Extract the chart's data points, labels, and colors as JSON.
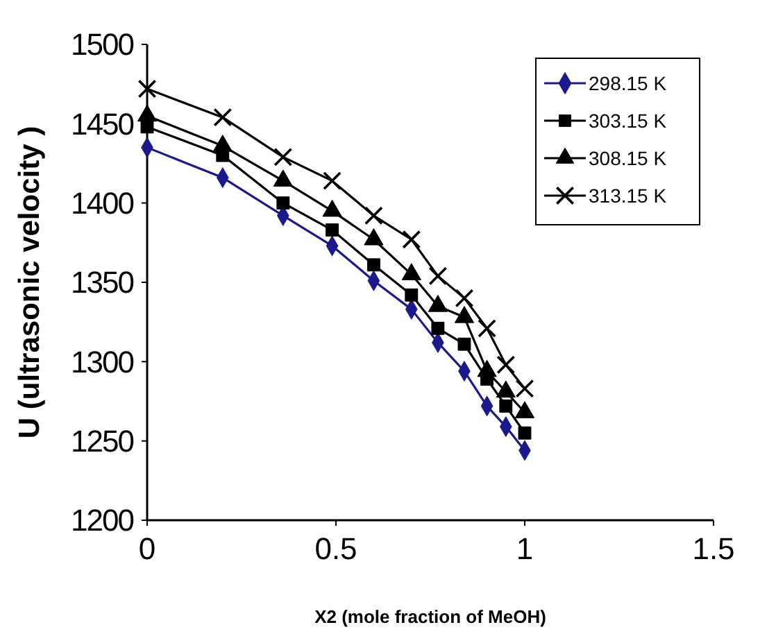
{
  "chart_data": {
    "type": "line",
    "xlabel": "X2 (mole fraction of MeOH)",
    "ylabel": "U (ultrasonic velocity )",
    "x": [
      0,
      0.2,
      0.36,
      0.49,
      0.6,
      0.7,
      0.77,
      0.84,
      0.9,
      0.95,
      1
    ],
    "xlim": [
      0,
      1.5
    ],
    "xticks": [
      0,
      0.5,
      1,
      1.5
    ],
    "ylim": [
      1200,
      1500
    ],
    "yticks": [
      1200,
      1250,
      1300,
      1350,
      1400,
      1450,
      1500
    ],
    "grid": false,
    "legend": "top right",
    "series": [
      {
        "name": "298.15 K",
        "color": "#1a1a8c",
        "marker": "diamond",
        "values": [
          1435,
          1416,
          1392,
          1373,
          1351,
          1333,
          1312,
          1294,
          1272,
          1259,
          1244
        ]
      },
      {
        "name": "303.15 K",
        "color": "#000000",
        "marker": "square",
        "values": [
          1448,
          1430,
          1400,
          1383,
          1361,
          1342,
          1321,
          1311,
          1289,
          1272,
          1255
        ]
      },
      {
        "name": "308.15 K",
        "color": "#000000",
        "marker": "triangle",
        "values": [
          1455,
          1436,
          1414,
          1395,
          1377,
          1355,
          1335,
          1328,
          1294,
          1281,
          1268
        ]
      },
      {
        "name": "313.15 K",
        "color": "#000000",
        "marker": "cross",
        "values": [
          1472,
          1454,
          1429,
          1414,
          1392,
          1377,
          1354,
          1340,
          1321,
          1298,
          1283
        ]
      }
    ]
  }
}
